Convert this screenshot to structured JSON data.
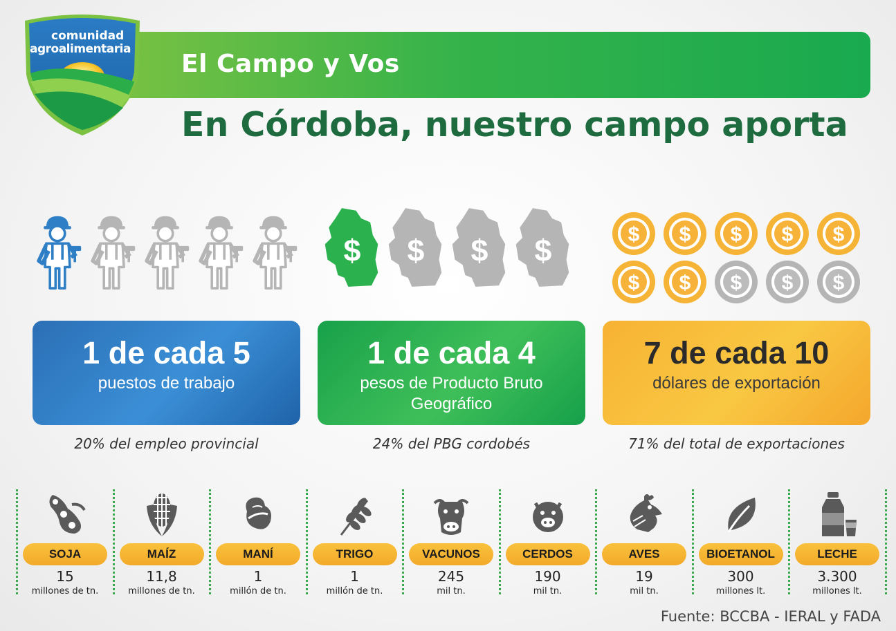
{
  "header": {
    "logo_line1": "comunidad",
    "logo_line2": "agroalimentaria",
    "bar_title": "El Campo y Vos",
    "main_title": "En Córdoba, nuestro campo aporta"
  },
  "colors": {
    "blue": "#2f7fc6",
    "green": "#2bb24f",
    "orange": "#f6b436",
    "gray": "#b5b5b5",
    "dark_green": "#1d6b3e"
  },
  "stats": [
    {
      "id": "empleo",
      "icon": "worker-icon",
      "highlighted": 1,
      "total": 5,
      "big": "1 de cada 5",
      "sub_lines": [
        "puestos de trabajo"
      ],
      "note": "20% del empleo provincial"
    },
    {
      "id": "pbg",
      "icon": "province-dollar-icon",
      "highlighted": 1,
      "total": 4,
      "big": "1 de cada 4",
      "sub_lines": [
        "pesos de Producto Bruto",
        "Geográfico"
      ],
      "note": "24% del PBG cordobés"
    },
    {
      "id": "exportacion",
      "icon": "dollar-coin-icon",
      "highlighted": 7,
      "total": 10,
      "big": "7 de cada 10",
      "sub_lines": [
        "dólares de exportación"
      ],
      "note": "71% del total de exportaciones"
    }
  ],
  "products": [
    {
      "icon": "soybean-icon",
      "name": "SOJA",
      "value": "15",
      "unit": "millones de tn."
    },
    {
      "icon": "corn-icon",
      "name": "MAÍZ",
      "value": "11,8",
      "unit": "millones de tn."
    },
    {
      "icon": "peanut-icon",
      "name": "MANÍ",
      "value": "1",
      "unit": "millón de tn."
    },
    {
      "icon": "wheat-icon",
      "name": "TRIGO",
      "value": "1",
      "unit": "millón de tn."
    },
    {
      "icon": "cow-icon",
      "name": "VACUNOS",
      "value": "245",
      "unit": "mil tn."
    },
    {
      "icon": "pig-icon",
      "name": "CERDOS",
      "value": "190",
      "unit": "mil tn."
    },
    {
      "icon": "chicken-icon",
      "name": "AVES",
      "value": "19",
      "unit": "mil tn."
    },
    {
      "icon": "leaf-icon",
      "name": "BIOETANOL",
      "value": "300",
      "unit": "millones lt."
    },
    {
      "icon": "milk-icon",
      "name": "LECHE",
      "value": "3.300",
      "unit": "millones lt."
    }
  ],
  "source": "Fuente: BCCBA - IERAL y FADA"
}
